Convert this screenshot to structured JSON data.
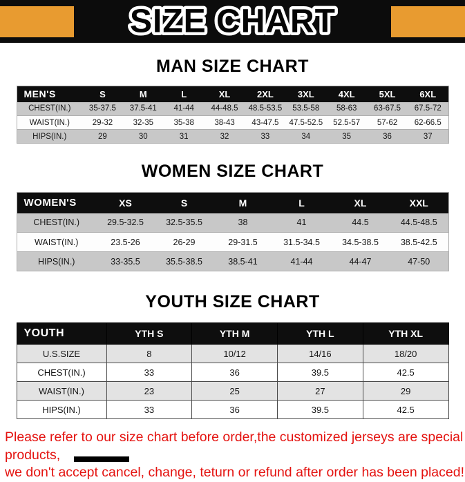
{
  "page": {
    "title": "SIZE CHART",
    "footer": {
      "line1": "Please refer to our size chart before order,the customized jerseys are special products,",
      "line2": "we don't accept cancel, change, teturn or refund after order has been placed!"
    }
  },
  "colors": {
    "accent_orange": "#E89B30",
    "header_black": "#0E0E0E",
    "row_gray": "#C8C8C8",
    "youth_row_gray": "#E3E3E3",
    "footer_red": "#E41310"
  },
  "sections": {
    "men": {
      "title": "MAN SIZE CHART",
      "table": {
        "header": [
          "MEN'S",
          "S",
          "M",
          "L",
          "XL",
          "2XL",
          "3XL",
          "4XL",
          "5XL",
          "6XL"
        ],
        "rows": [
          [
            "CHEST(IN.)",
            "35-37.5",
            "37.5-41",
            "41-44",
            "44-48.5",
            "48.5-53.5",
            "53.5-58",
            "58-63",
            "63-67.5",
            "67.5-72"
          ],
          [
            "WAIST(IN.)",
            "29-32",
            "32-35",
            "35-38",
            "38-43",
            "43-47.5",
            "47.5-52.5",
            "52.5-57",
            "57-62",
            "62-66.5"
          ],
          [
            "HIPS(IN.)",
            "29",
            "30",
            "31",
            "32",
            "33",
            "34",
            "35",
            "36",
            "37"
          ]
        ]
      }
    },
    "women": {
      "title": "WOMEN SIZE CHART",
      "table": {
        "header": [
          "WOMEN'S",
          "XS",
          "S",
          "M",
          "L",
          "XL",
          "XXL"
        ],
        "rows": [
          [
            "CHEST(IN.)",
            "29.5-32.5",
            "32.5-35.5",
            "38",
            "41",
            "44.5",
            "44.5-48.5"
          ],
          [
            "WAIST(IN.)",
            "23.5-26",
            "26-29",
            "29-31.5",
            "31.5-34.5",
            "34.5-38.5",
            "38.5-42.5"
          ],
          [
            "HIPS(IN.)",
            "33-35.5",
            "35.5-38.5",
            "38.5-41",
            "41-44",
            "44-47",
            "47-50"
          ]
        ]
      }
    },
    "youth": {
      "title": "YOUTH SIZE CHART",
      "table": {
        "header": [
          "YOUTH",
          "YTH S",
          "YTH M",
          "YTH L",
          "YTH XL"
        ],
        "rows": [
          [
            "U.S.SIZE",
            "8",
            "10/12",
            "14/16",
            "18/20"
          ],
          [
            "CHEST(IN.)",
            "33",
            "36",
            "39.5",
            "42.5"
          ],
          [
            "WAIST(IN.)",
            "23",
            "25",
            "27",
            "29"
          ],
          [
            "HIPS(IN.)",
            "33",
            "36",
            "39.5",
            "42.5"
          ]
        ]
      }
    }
  }
}
